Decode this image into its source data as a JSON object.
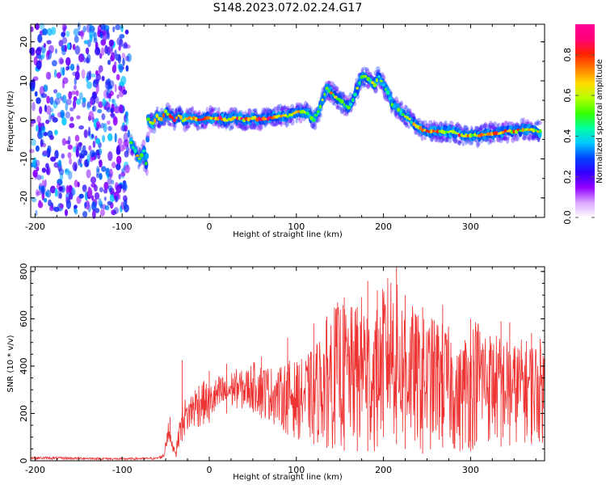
{
  "title": "S148.2023.072.02.24.G17",
  "chart_data": [
    {
      "type": "heatmap",
      "xlabel": "Height of straight line (km)",
      "ylabel": "Frequency (Hz)",
      "xlim": [
        -205,
        385
      ],
      "ylim": [
        -25,
        24.5
      ],
      "x_ticks": [
        "-200",
        "-100",
        "0",
        "100",
        "200",
        "300"
      ],
      "y_ticks": [
        "20",
        "10",
        "0",
        "-10",
        "-20"
      ],
      "x_tick_values": [
        -200,
        -100,
        0,
        100,
        200,
        300
      ],
      "y_tick_values": [
        20,
        10,
        0,
        -10,
        -20
      ],
      "noise_region_x": [
        -205,
        -90
      ],
      "trace": {
        "x": [
          -90,
          -85,
          -80,
          -75,
          -72,
          -70,
          -65,
          -60,
          -55,
          -50,
          -45,
          -40,
          -35,
          -30,
          -20,
          -10,
          0,
          10,
          20,
          30,
          40,
          50,
          60,
          70,
          80,
          90,
          100,
          110,
          115,
          120,
          125,
          130,
          135,
          140,
          145,
          150,
          155,
          160,
          165,
          170,
          175,
          180,
          185,
          190,
          195,
          200,
          205,
          210,
          215,
          220,
          225,
          230,
          235,
          240,
          250,
          260,
          270,
          280,
          290,
          300,
          310,
          320,
          330,
          340,
          350,
          360,
          370,
          380
        ],
        "y": [
          -6,
          -8,
          -10,
          -8,
          -12,
          0,
          -1,
          1,
          0,
          2,
          1,
          0,
          1,
          0,
          0.5,
          0,
          0.5,
          0.5,
          0,
          0.5,
          0,
          0.5,
          0,
          0.5,
          1,
          1,
          2,
          2,
          1,
          0,
          2,
          5,
          8,
          7,
          6,
          5,
          4,
          3,
          5,
          8,
          11,
          11,
          10,
          9,
          11,
          9,
          7,
          4,
          3,
          2,
          1,
          0,
          -1,
          -2,
          -3,
          -3,
          -3,
          -3,
          -4,
          -4,
          -4,
          -3.5,
          -3.5,
          -3,
          -3,
          -2.5,
          -2.5,
          -3
        ],
        "amplitude": [
          0.5,
          0.6,
          0.7,
          0.6,
          0.5,
          0.7,
          0.75,
          0.8,
          0.8,
          0.75,
          0.8,
          0.8,
          0.85,
          0.85,
          0.85,
          0.85,
          0.85,
          0.85,
          0.85,
          0.85,
          0.85,
          0.85,
          0.85,
          0.8,
          0.8,
          0.75,
          0.7,
          0.6,
          0.5,
          0.55,
          0.6,
          0.65,
          0.7,
          0.7,
          0.65,
          0.6,
          0.55,
          0.55,
          0.6,
          0.65,
          0.7,
          0.65,
          0.6,
          0.6,
          0.6,
          0.55,
          0.55,
          0.5,
          0.5,
          0.55,
          0.6,
          0.65,
          0.7,
          0.7,
          0.75,
          0.75,
          0.75,
          0.8,
          0.8,
          0.75,
          0.75,
          0.75,
          0.8,
          0.8,
          0.75,
          0.75,
          0.75,
          0.7
        ]
      },
      "colorbar": {
        "label": "Normalized spectral amplitude",
        "range": [
          0,
          0.95
        ],
        "ticks": [
          "0.0",
          "0.2",
          "0.4",
          "0.6",
          "0.8"
        ],
        "tick_values": [
          0,
          0.2,
          0.4,
          0.6,
          0.8
        ],
        "colors": [
          "#ffffff",
          "#d9a6ff",
          "#9400ff",
          "#3300ff",
          "#0044ff",
          "#00c8ff",
          "#00ffa0",
          "#33ff00",
          "#b4ff00",
          "#ffdc00",
          "#ff8000",
          "#ff2200",
          "#ff0077",
          "#ff0099"
        ]
      }
    },
    {
      "type": "line",
      "xlabel": "Height of straight line (km)",
      "ylabel": "SNR (10 * v/v)",
      "xlim": [
        -205,
        385
      ],
      "ylim": [
        0,
        820
      ],
      "x_ticks": [
        "-200",
        "-100",
        "0",
        "100",
        "200",
        "300"
      ],
      "y_ticks": [
        "0",
        "200",
        "400",
        "600",
        "800"
      ],
      "x_tick_values": [
        -200,
        -100,
        0,
        100,
        200,
        300
      ],
      "y_tick_values": [
        0,
        200,
        400,
        600,
        800
      ],
      "color": "#ee3333",
      "series": [
        {
          "envelope_x": [
            -205,
            -150,
            -100,
            -60,
            -52,
            -48,
            -45,
            -42,
            -38,
            -35,
            -30,
            -25,
            -20,
            -10,
            0,
            10,
            20,
            30,
            40,
            50,
            60,
            70,
            80,
            90,
            100,
            110,
            120,
            130,
            140,
            150,
            160,
            170,
            180,
            185,
            190,
            195,
            200,
            210,
            220,
            230,
            240,
            250,
            260,
            270,
            280,
            285,
            290,
            300,
            310,
            320,
            330,
            340,
            350,
            360,
            370,
            380,
            385
          ],
          "envelope_low": [
            5,
            5,
            3,
            5,
            10,
            60,
            80,
            40,
            10,
            60,
            90,
            110,
            120,
            140,
            160,
            180,
            200,
            220,
            210,
            200,
            180,
            160,
            140,
            110,
            90,
            80,
            70,
            60,
            50,
            45,
            40,
            40,
            40,
            40,
            30,
            80,
            100,
            80,
            60,
            40,
            30,
            30,
            40,
            60,
            30,
            20,
            20,
            40,
            60,
            60,
            60,
            60,
            70,
            70,
            70,
            70,
            70
          ],
          "envelope_high": [
            18,
            15,
            12,
            15,
            30,
            180,
            120,
            80,
            60,
            150,
            280,
            250,
            300,
            350,
            320,
            360,
            370,
            390,
            380,
            420,
            410,
            400,
            390,
            430,
            420,
            440,
            480,
            560,
            650,
            680,
            650,
            660,
            750,
            560,
            680,
            600,
            760,
            820,
            700,
            680,
            620,
            600,
            620,
            580,
            560,
            450,
            520,
            600,
            620,
            560,
            540,
            520,
            500,
            520,
            510,
            520,
            480
          ],
          "spikes": [
            [
              -45,
              185
            ],
            [
              -31,
              425
            ],
            [
              0,
              380
            ],
            [
              20,
              410
            ],
            [
              60,
              440
            ],
            [
              90,
              520
            ],
            [
              120,
              580
            ],
            [
              135,
              610
            ],
            [
              155,
              690
            ],
            [
              170,
              650
            ],
            [
              182,
              760
            ],
            [
              193,
              720
            ],
            [
              200,
              640
            ],
            [
              215,
              820
            ],
            [
              225,
              700
            ],
            [
              245,
              650
            ],
            [
              268,
              660
            ],
            [
              300,
              600
            ],
            [
              335,
              590
            ],
            [
              345,
              585
            ],
            [
              370,
              540
            ]
          ]
        }
      ]
    }
  ]
}
